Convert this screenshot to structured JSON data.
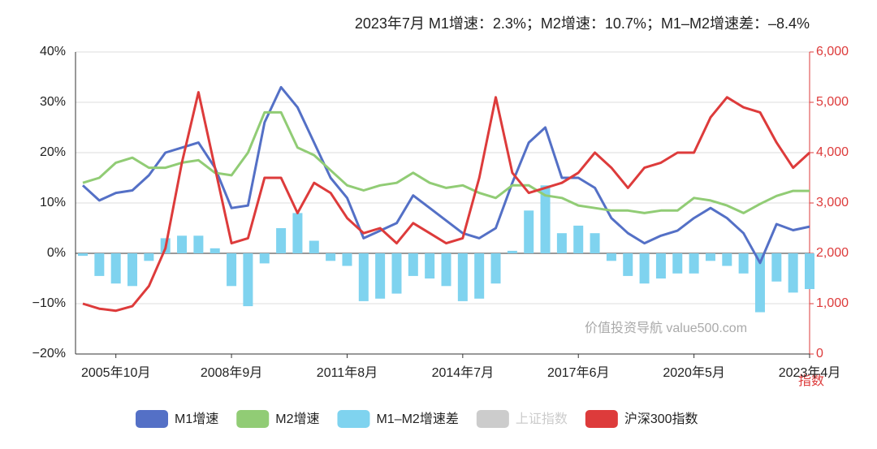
{
  "chart_data": {
    "type": "combo",
    "title": "2023年7月    M1增速：2.3%；M2增速：10.7%；M1–M2增速差：–8.4%",
    "y2label": "指数",
    "watermark": "价值投资导航 value500.com",
    "categories": [
      null,
      null,
      "2005年10月",
      null,
      null,
      null,
      null,
      null,
      null,
      "2008年9月",
      null,
      null,
      null,
      null,
      null,
      null,
      "2011年8月",
      null,
      null,
      null,
      null,
      null,
      null,
      "2014年7月",
      null,
      null,
      null,
      null,
      null,
      null,
      "2017年6月",
      null,
      null,
      null,
      null,
      null,
      null,
      "2020年5月",
      null,
      null,
      null,
      null,
      null,
      null,
      "2023年4月"
    ],
    "ylim": [
      -20,
      40
    ],
    "yticks": [
      {
        "value": -20,
        "label": "−20%"
      },
      {
        "value": -10,
        "label": "−10%"
      },
      {
        "value": 0,
        "label": "0%"
      },
      {
        "value": 10,
        "label": "10%"
      },
      {
        "value": 20,
        "label": "20%"
      },
      {
        "value": 30,
        "label": "30%"
      },
      {
        "value": 40,
        "label": "40%"
      }
    ],
    "y2lim": [
      0,
      6000
    ],
    "y2ticks": [
      0,
      {
        "value": 1000,
        "label": "1,000"
      },
      {
        "value": 2000,
        "label": "2,000"
      },
      {
        "value": 3000,
        "label": "3,000"
      },
      {
        "value": 4000,
        "label": "4,000"
      },
      {
        "value": 5000,
        "label": "5,000"
      },
      {
        "value": 6000,
        "label": "6,000"
      }
    ],
    "grid": true,
    "series": [
      {
        "name": "M1–M2增速差",
        "type": "bar",
        "color": "#7fd3ef",
        "values": [
          -0.5,
          -4.5,
          -6,
          -6.5,
          -1.5,
          3,
          3.5,
          3.5,
          1,
          -6.5,
          -10.5,
          -2,
          5,
          8,
          2.5,
          -1.5,
          -2.5,
          -9.5,
          -9,
          -8,
          -4.5,
          -5,
          -6.5,
          -9.5,
          -9,
          -6,
          0.5,
          8.5,
          13.5,
          4,
          5.5,
          4,
          -1.5,
          -4.5,
          -6,
          -5,
          -4,
          -4,
          -1.5,
          -2.5,
          -4,
          -11.7,
          -5.6,
          -7.8,
          -7.1
        ]
      },
      {
        "name": "M1增速",
        "type": "line",
        "color": "#5470c6",
        "values": [
          13.5,
          10.5,
          12,
          12.5,
          15.5,
          20,
          21,
          22,
          17,
          9,
          9.5,
          26,
          33,
          29,
          22,
          15,
          11,
          3,
          4.5,
          6,
          11.5,
          9,
          6.5,
          4,
          3,
          5,
          14,
          22,
          25,
          15,
          15,
          13,
          7,
          4,
          2,
          3.5,
          4.5,
          7,
          9,
          7,
          4,
          -1.9,
          5.8,
          4.6,
          5.3
        ]
      },
      {
        "name": "M2增速",
        "type": "line",
        "color": "#91cc75",
        "values": [
          14,
          15,
          18,
          19,
          17,
          17,
          18,
          18.5,
          16,
          15.5,
          20,
          28,
          28,
          21,
          19.5,
          16.5,
          13.5,
          12.5,
          13.5,
          14,
          16,
          14,
          13,
          13.5,
          12,
          11,
          13.5,
          13.5,
          11.5,
          11,
          9.5,
          9,
          8.5,
          8.5,
          8,
          8.5,
          8.5,
          11,
          10.5,
          9.5,
          8,
          9.8,
          11.4,
          12.4,
          12.4
        ]
      },
      {
        "name": "沪深300指数",
        "type": "line",
        "axis": "y2",
        "color": "#dd3b3b",
        "values": [
          1000,
          900,
          860,
          950,
          1350,
          2100,
          3800,
          5200,
          3700,
          2200,
          2300,
          3500,
          3500,
          2800,
          3400,
          3200,
          2700,
          2400,
          2500,
          2200,
          2600,
          2400,
          2200,
          2300,
          3500,
          5100,
          3600,
          3200,
          3300,
          3400,
          3600,
          4000,
          3700,
          3300,
          3700,
          3800,
          4000,
          4000,
          4700,
          5100,
          4900,
          4800,
          4200,
          3700,
          4000
        ]
      }
    ],
    "hidden_series": [
      {
        "name": "上证指数",
        "color": "#cccccc"
      }
    ]
  }
}
